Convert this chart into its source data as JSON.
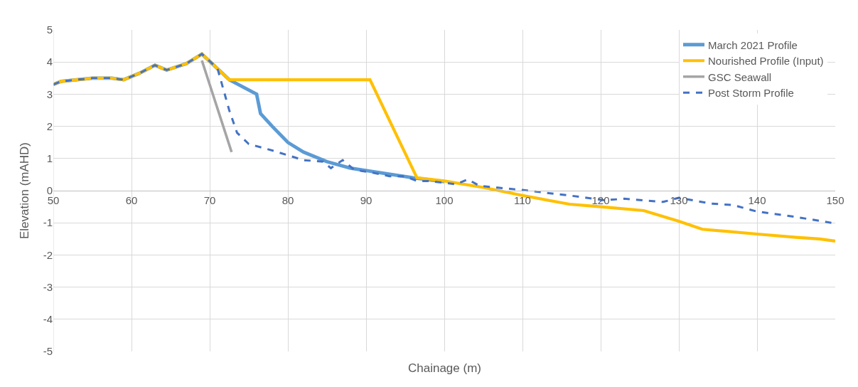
{
  "chart_data": {
    "type": "line",
    "xlabel": "Chainage (m)",
    "ylabel": "Elevation (mAHD)",
    "xlim": [
      50,
      150
    ],
    "xticks": [
      50,
      60,
      70,
      80,
      90,
      100,
      110,
      120,
      130,
      140,
      150
    ],
    "ylim": [
      -5,
      5
    ],
    "yticks": [
      -5,
      -4,
      -3,
      -2,
      -1,
      0,
      1,
      2,
      3,
      4,
      5
    ],
    "grid": true,
    "legend": "top right",
    "marker": "none",
    "series": [
      {
        "name": "March 2021 Profile",
        "color": "#5b9bd5",
        "line_style": "solid",
        "x": [
          50,
          51,
          55,
          57.5,
          59,
          61,
          63,
          64.5,
          67,
          69,
          72.5,
          76,
          76.5,
          78,
          80,
          82,
          85,
          88,
          92,
          96,
          100
        ],
        "values": [
          3.3,
          3.4,
          3.5,
          3.5,
          3.45,
          3.65,
          3.9,
          3.75,
          3.95,
          4.25,
          3.45,
          3.0,
          2.4,
          2.0,
          1.5,
          1.2,
          0.9,
          0.7,
          0.55,
          0.4,
          0.28
        ]
      },
      {
        "name": "Nourished Profile (Input)",
        "color": "#ffc000",
        "line_style": "solid",
        "x": [
          50,
          51,
          55,
          57.5,
          59,
          61,
          63,
          64.5,
          67,
          69,
          72.5,
          90.5,
          96.5,
          100,
          105,
          110,
          116,
          120,
          125.5,
          130,
          133,
          140,
          145,
          148,
          150
        ],
        "values": [
          3.3,
          3.4,
          3.5,
          3.5,
          3.45,
          3.65,
          3.9,
          3.75,
          3.95,
          4.25,
          3.45,
          3.45,
          0.4,
          0.3,
          0.1,
          -0.15,
          -0.42,
          -0.5,
          -0.62,
          -0.95,
          -1.2,
          -1.35,
          -1.45,
          -1.5,
          -1.57
        ]
      },
      {
        "name": "GSC Seawall",
        "color": "#a5a5a5",
        "line_style": "solid",
        "x": [
          69,
          72.8
        ],
        "values": [
          4.05,
          1.2
        ]
      },
      {
        "name": "Post Storm Profile",
        "color": "#4472c4",
        "line_style": "dashed",
        "x": [
          50,
          51,
          55,
          57.5,
          59,
          61,
          63,
          64.5,
          67,
          69,
          71,
          72.5,
          73.5,
          75,
          78,
          82,
          84.5,
          85.5,
          87,
          88.5,
          91,
          93,
          95,
          96.5,
          98,
          101.5,
          103,
          104.5,
          110,
          116,
          120.5,
          123,
          128,
          130,
          134,
          137,
          140,
          145,
          149.5
        ],
        "values": [
          3.3,
          3.4,
          3.5,
          3.5,
          3.45,
          3.65,
          3.9,
          3.75,
          3.95,
          4.25,
          3.8,
          2.5,
          1.8,
          1.45,
          1.25,
          0.95,
          0.9,
          0.7,
          0.95,
          0.65,
          0.55,
          0.45,
          0.45,
          0.3,
          0.3,
          0.2,
          0.35,
          0.15,
          0.02,
          -0.15,
          -0.3,
          -0.25,
          -0.35,
          -0.22,
          -0.4,
          -0.45,
          -0.65,
          -0.82,
          -1.0
        ]
      }
    ]
  }
}
